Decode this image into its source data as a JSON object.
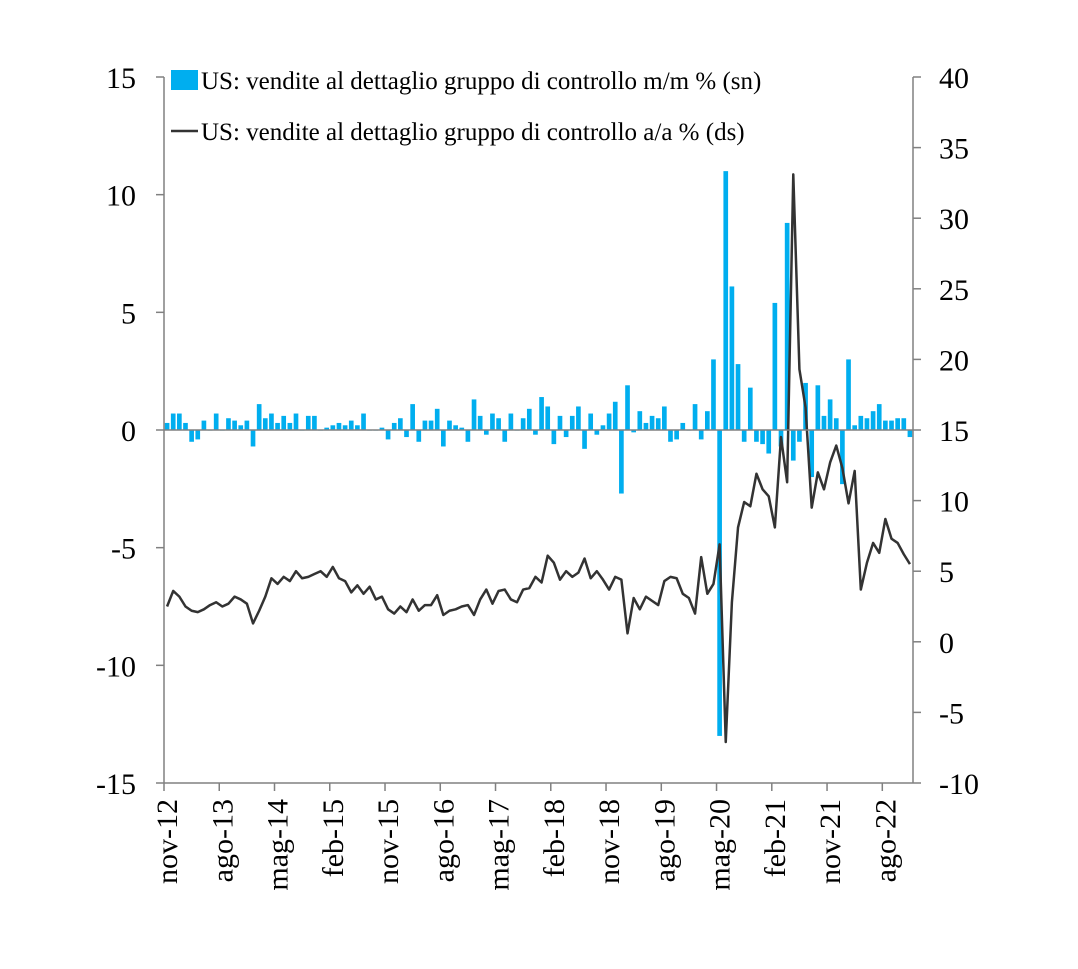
{
  "chart_data": {
    "type": "bar+line",
    "title": "",
    "colors": {
      "bars": "#00AEEF",
      "line": "#333333",
      "axis": "#808080"
    },
    "x_tick_labels": [
      "nov-12",
      "ago-13",
      "mag-14",
      "feb-15",
      "nov-15",
      "ago-16",
      "mag-17",
      "feb-18",
      "nov-18",
      "ago-19",
      "mag-20",
      "feb-21",
      "nov-21",
      "ago-22"
    ],
    "left_axis": {
      "ylim": [
        -15,
        15
      ],
      "ticks": [
        "-15",
        "-10",
        "-5",
        "0",
        "5",
        "10",
        "15"
      ]
    },
    "right_axis": {
      "ylim": [
        -10,
        40
      ],
      "ticks": [
        "-10",
        "-5",
        "0",
        "5",
        "10",
        "15",
        "20",
        "25",
        "30",
        "35",
        "40"
      ]
    },
    "legend": [
      {
        "label": "US: vendite al dettaglio gruppo di controllo m/m % (sn)",
        "kind": "bar"
      },
      {
        "label": "US: vendite al dettaglio gruppo di controllo a/a % (ds)",
        "kind": "line"
      }
    ],
    "series": [
      {
        "name": "US: vendite al dettaglio gruppo di controllo m/m % (sn)",
        "kind": "bar",
        "axis": "left",
        "values": [
          0.3,
          0.7,
          0.7,
          0.3,
          -0.5,
          -0.4,
          0.4,
          0.0,
          0.7,
          0.0,
          0.5,
          0.4,
          0.2,
          0.4,
          -0.7,
          1.1,
          0.5,
          0.7,
          0.3,
          0.6,
          0.3,
          0.7,
          0.0,
          0.6,
          0.6,
          0.0,
          0.1,
          0.2,
          0.3,
          0.2,
          0.4,
          0.2,
          0.7,
          0.0,
          0.0,
          0.1,
          -0.4,
          0.3,
          0.5,
          -0.3,
          1.1,
          -0.5,
          0.4,
          0.4,
          0.9,
          -0.7,
          0.4,
          0.2,
          0.1,
          -0.5,
          1.3,
          0.6,
          -0.2,
          0.7,
          0.5,
          -0.5,
          0.7,
          0.0,
          0.5,
          0.9,
          -0.2,
          1.4,
          1.0,
          -0.6,
          0.6,
          -0.3,
          0.6,
          1.0,
          -0.8,
          0.7,
          -0.2,
          0.2,
          0.7,
          1.2,
          -2.7,
          1.9,
          -0.1,
          0.8,
          0.3,
          0.6,
          0.5,
          1.0,
          -0.5,
          -0.4,
          0.3,
          0.0,
          1.1,
          -0.4,
          0.8,
          3.0,
          -13.0,
          11.0,
          6.1,
          2.8,
          -0.5,
          1.8,
          -0.5,
          -0.6,
          -1.0,
          5.4,
          -0.7,
          8.8,
          -1.3,
          -0.5,
          2.0,
          -2.0,
          1.9,
          0.6,
          1.3,
          0.5,
          -2.3,
          3.0,
          0.2,
          0.6,
          0.5,
          0.8,
          1.1,
          0.4,
          0.4,
          0.5,
          0.5,
          -0.3
        ]
      },
      {
        "name": "US: vendite al dettaglio gruppo di controllo a/a % (ds)",
        "kind": "line",
        "axis": "right",
        "values": [
          2.5,
          3.6,
          3.2,
          2.5,
          2.2,
          2.1,
          2.3,
          2.6,
          2.8,
          2.5,
          2.7,
          3.2,
          3.0,
          2.7,
          1.3,
          2.2,
          3.2,
          4.5,
          4.1,
          4.6,
          4.3,
          5.0,
          4.5,
          4.6,
          4.8,
          5.0,
          4.6,
          5.3,
          4.5,
          4.3,
          3.5,
          4.0,
          3.4,
          3.9,
          3.0,
          3.2,
          2.3,
          2.0,
          2.5,
          2.1,
          3.0,
          2.2,
          2.6,
          2.6,
          3.3,
          1.9,
          2.2,
          2.3,
          2.5,
          2.6,
          1.9,
          3.0,
          3.7,
          2.7,
          3.6,
          3.7,
          3.0,
          2.8,
          3.7,
          3.8,
          4.6,
          4.2,
          6.1,
          5.6,
          4.4,
          5.0,
          4.6,
          4.9,
          5.9,
          4.5,
          5.0,
          4.4,
          3.7,
          4.6,
          4.4,
          0.6,
          3.1,
          2.3,
          3.2,
          2.9,
          2.6,
          4.3,
          4.6,
          4.5,
          3.4,
          3.1,
          2.0,
          6.0,
          3.4,
          4.1,
          6.9,
          -7.1,
          2.8,
          8.1,
          9.9,
          9.6,
          11.9,
          10.8,
          10.3,
          8.1,
          14.5,
          11.3,
          33.1,
          19.3,
          16.6,
          9.5,
          12.0,
          10.8,
          12.7,
          13.9,
          12.3,
          9.8,
          12.1,
          3.7,
          5.6,
          7.0,
          6.3,
          8.7,
          7.3,
          7.0,
          6.2,
          5.5
        ]
      }
    ]
  }
}
